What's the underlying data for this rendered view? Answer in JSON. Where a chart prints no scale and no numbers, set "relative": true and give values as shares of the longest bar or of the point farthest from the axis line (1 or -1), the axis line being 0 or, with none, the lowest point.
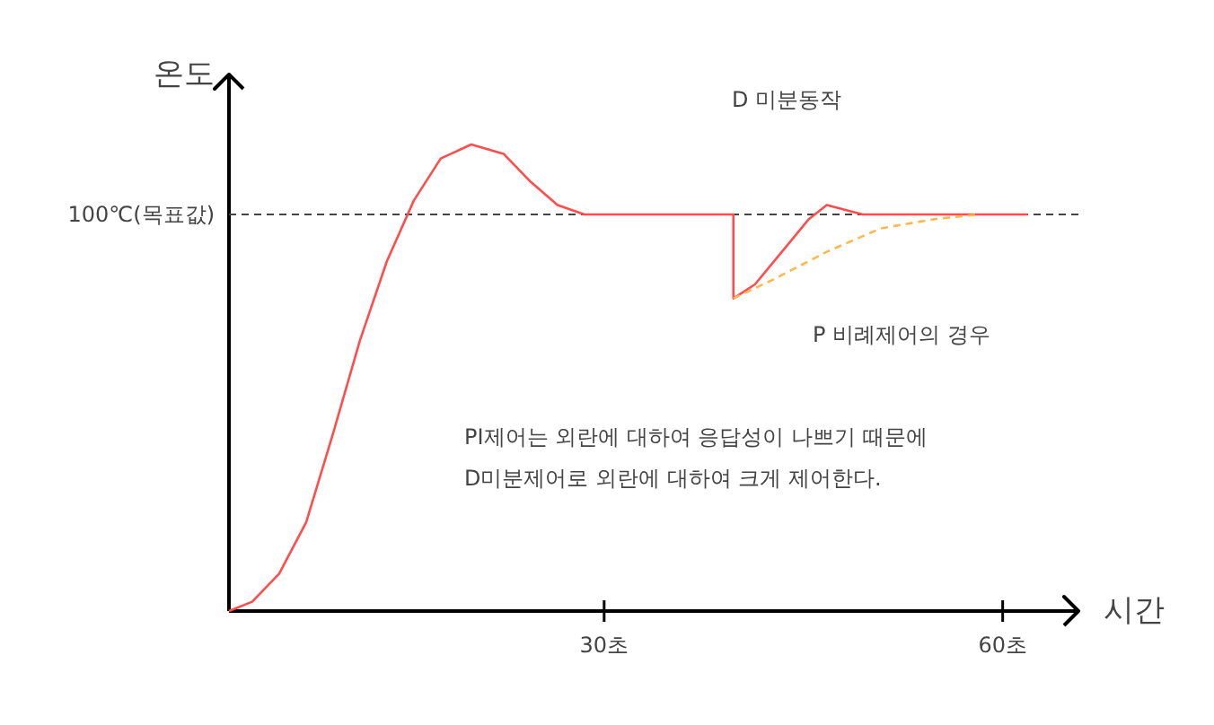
{
  "chart_data": {
    "type": "line",
    "relative": true,
    "xlabel": "시간",
    "ylabel": "온도",
    "xlim": [
      1.76,
      65.7
    ],
    "xticks": [
      {
        "value": 30,
        "label": "30초"
      },
      {
        "value": 60,
        "label": "60초"
      }
    ],
    "series": [
      {
        "color": "#ff4d4d",
        "line_style": "solid",
        "x": [
          1.76,
          3.51,
          5.54,
          7.57,
          9.59,
          11.62,
          13.65,
          15.68,
          17.7,
          20.0,
          22.43,
          24.46,
          26.49,
          28.51,
          39.73,
          39.73,
          41.35,
          43.38,
          45.41,
          46.76,
          48.11,
          49.46,
          61.89
        ],
        "values": [
          0,
          0.02,
          0.08,
          0.19,
          0.38,
          0.58,
          0.75,
          0.88,
          0.97,
          1,
          0.98,
          0.92,
          0.87,
          0.85,
          0.85,
          0.67,
          0.7,
          0.77,
          0.84,
          0.87,
          0.86,
          0.85,
          0.85
        ]
      },
      {
        "color": "#ffb84d",
        "line_style": "dashed",
        "x": [
          39.73,
          42.7,
          46.76,
          50.81,
          54.86,
          58.24
        ],
        "values": [
          0.67,
          0.71,
          0.77,
          0.82,
          0.84,
          0.85
        ]
      }
    ],
    "ref_lines": [
      {
        "axis": "y",
        "value": 0.85,
        "label": "100℃(목표값)",
        "color": "#444444",
        "line_style": "dashed"
      }
    ],
    "annotations": [
      "D 미분동작",
      "P 비례제어의 경우",
      "PI제어는 외란에 대하여 응답성이 나쁘기 때문에",
      "D미분제어로 외란에 대하여 크게 제어한다."
    ],
    "grid": false,
    "marker": "none"
  }
}
